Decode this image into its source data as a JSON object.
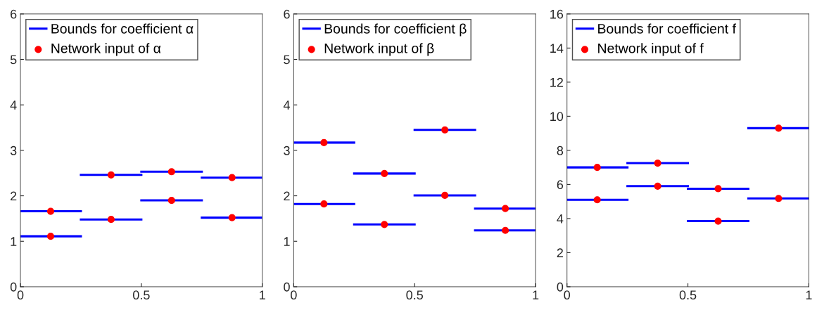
{
  "chart_data": [
    {
      "type": "line",
      "xlim": [
        0,
        1
      ],
      "xticks": [
        0,
        0.5,
        1
      ],
      "ylim": [
        0,
        6
      ],
      "yticks": [
        0,
        1,
        2,
        3,
        4,
        5,
        6
      ],
      "grid": false,
      "legend": "top left",
      "series": [
        {
          "name": "Bounds for coefficient α",
          "color": "#0000ff",
          "x": [
            0,
            0.25
          ],
          "values": [
            1.66,
            1.66
          ]
        },
        {
          "color": "#0000ff",
          "x": [
            0,
            0.25
          ],
          "values": [
            1.11,
            1.11
          ]
        },
        {
          "color": "#0000ff",
          "x": [
            0.25,
            0.5
          ],
          "values": [
            2.46,
            2.46
          ]
        },
        {
          "color": "#0000ff",
          "x": [
            0.25,
            0.5
          ],
          "values": [
            1.48,
            1.48
          ]
        },
        {
          "color": "#0000ff",
          "x": [
            0.5,
            0.75
          ],
          "values": [
            2.53,
            2.53
          ]
        },
        {
          "color": "#0000ff",
          "x": [
            0.5,
            0.75
          ],
          "values": [
            1.9,
            1.9
          ]
        },
        {
          "color": "#0000ff",
          "x": [
            0.75,
            1
          ],
          "values": [
            2.4,
            2.4
          ]
        },
        {
          "color": "#0000ff",
          "x": [
            0.75,
            1
          ],
          "values": [
            1.52,
            1.52
          ]
        },
        {
          "name": "Network input of α",
          "type": "scatter",
          "marker": "circle",
          "color": "#ff0000",
          "x": [
            0.125,
            0.125,
            0.375,
            0.375,
            0.625,
            0.625,
            0.875,
            0.875
          ],
          "values": [
            1.66,
            1.11,
            2.46,
            1.48,
            2.53,
            1.9,
            2.4,
            1.52
          ]
        }
      ]
    },
    {
      "type": "line",
      "xlim": [
        0,
        1
      ],
      "xticks": [
        0,
        0.5,
        1
      ],
      "ylim": [
        0,
        6
      ],
      "yticks": [
        0,
        1,
        2,
        3,
        4,
        5,
        6
      ],
      "grid": false,
      "legend": "top left",
      "series": [
        {
          "name": "Bounds for coefficient β",
          "color": "#0000ff",
          "x": [
            0,
            0.25
          ],
          "values": [
            3.17,
            3.17
          ]
        },
        {
          "color": "#0000ff",
          "x": [
            0,
            0.25
          ],
          "values": [
            1.82,
            1.82
          ]
        },
        {
          "color": "#0000ff",
          "x": [
            0.25,
            0.5
          ],
          "values": [
            2.49,
            2.49
          ]
        },
        {
          "color": "#0000ff",
          "x": [
            0.25,
            0.5
          ],
          "values": [
            1.37,
            1.37
          ]
        },
        {
          "color": "#0000ff",
          "x": [
            0.5,
            0.75
          ],
          "values": [
            3.45,
            3.45
          ]
        },
        {
          "color": "#0000ff",
          "x": [
            0.5,
            0.75
          ],
          "values": [
            2.01,
            2.01
          ]
        },
        {
          "color": "#0000ff",
          "x": [
            0.75,
            1
          ],
          "values": [
            1.72,
            1.72
          ]
        },
        {
          "color": "#0000ff",
          "x": [
            0.75,
            1
          ],
          "values": [
            1.24,
            1.24
          ]
        },
        {
          "name": "Network input of β",
          "type": "scatter",
          "marker": "circle",
          "color": "#ff0000",
          "x": [
            0.125,
            0.125,
            0.375,
            0.375,
            0.625,
            0.625,
            0.875,
            0.875
          ],
          "values": [
            3.17,
            1.82,
            2.49,
            1.37,
            3.45,
            2.01,
            1.72,
            1.24
          ]
        }
      ]
    },
    {
      "type": "line",
      "xlim": [
        0,
        1
      ],
      "xticks": [
        0,
        0.5,
        1
      ],
      "ylim": [
        0,
        16
      ],
      "yticks": [
        0,
        2,
        4,
        6,
        8,
        10,
        12,
        14,
        16
      ],
      "grid": false,
      "legend": "top left",
      "series": [
        {
          "name": "Bounds for coefficient f",
          "color": "#0000ff",
          "x": [
            0,
            0.25
          ],
          "values": [
            7.0,
            7.0
          ]
        },
        {
          "color": "#0000ff",
          "x": [
            0,
            0.25
          ],
          "values": [
            5.1,
            5.1
          ]
        },
        {
          "color": "#0000ff",
          "x": [
            0.25,
            0.5
          ],
          "values": [
            7.25,
            7.25
          ]
        },
        {
          "color": "#0000ff",
          "x": [
            0.25,
            0.5
          ],
          "values": [
            5.9,
            5.9
          ]
        },
        {
          "color": "#0000ff",
          "x": [
            0.5,
            0.75
          ],
          "values": [
            5.75,
            5.75
          ]
        },
        {
          "color": "#0000ff",
          "x": [
            0.5,
            0.75
          ],
          "values": [
            3.85,
            3.85
          ]
        },
        {
          "color": "#0000ff",
          "x": [
            0.75,
            1
          ],
          "values": [
            9.3,
            9.3
          ]
        },
        {
          "color": "#0000ff",
          "x": [
            0.75,
            1
          ],
          "values": [
            5.18,
            5.18
          ]
        },
        {
          "name": "Network input of f",
          "type": "scatter",
          "marker": "circle",
          "color": "#ff0000",
          "x": [
            0.125,
            0.125,
            0.375,
            0.375,
            0.625,
            0.625,
            0.875,
            0.875
          ],
          "values": [
            7.0,
            5.1,
            7.25,
            5.9,
            5.75,
            3.85,
            9.3,
            5.18
          ]
        }
      ]
    }
  ]
}
